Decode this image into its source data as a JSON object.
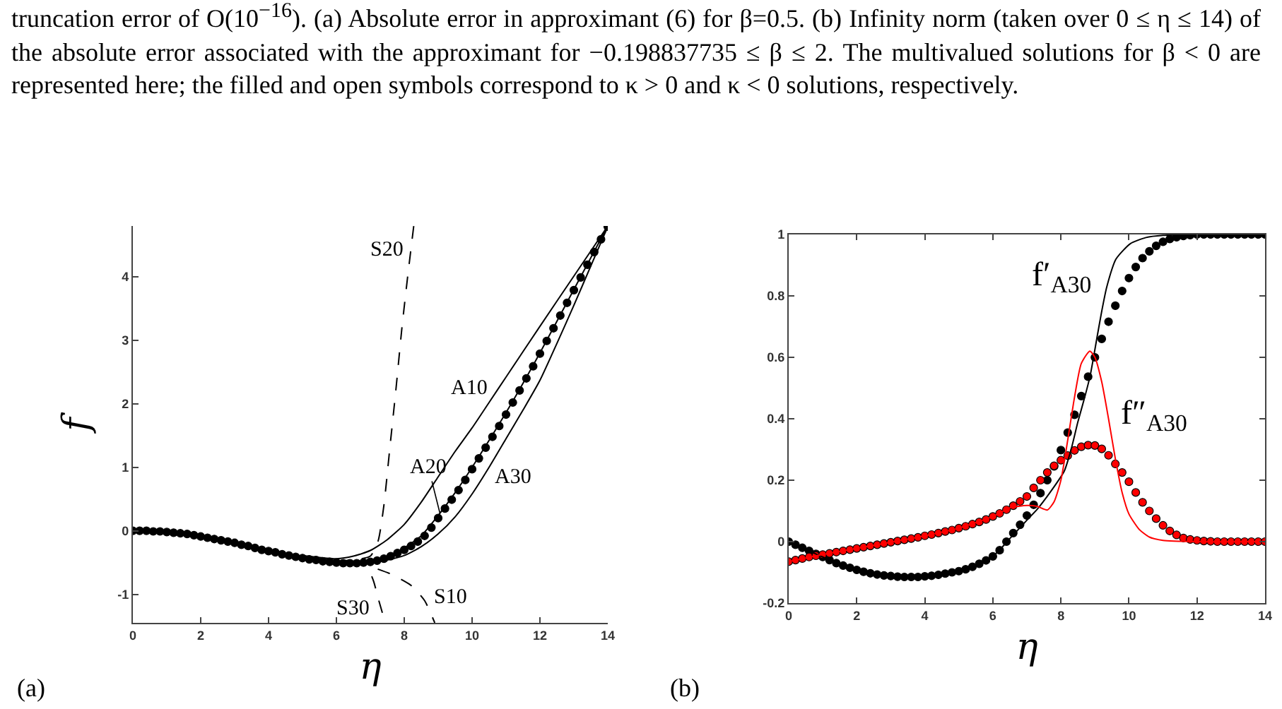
{
  "chart_data": [
    {
      "type": "line",
      "xlabel": "η",
      "ylabel": "f",
      "xlim": [
        0,
        14
      ],
      "ylim": [
        -1.45,
        4.8
      ],
      "xticks": [
        0,
        2,
        4,
        6,
        8,
        10,
        12,
        14
      ],
      "yticks": [
        -1,
        0,
        1,
        2,
        3,
        4
      ],
      "grid": false,
      "legend": false,
      "annotations": [
        "truncation error of O(10$^{−16}$).  (a) Absolute error in approximant (6) for β=0.5.  (b) Infinity norm (taken over 0 ≤ η ≤ 14) of the absolute error associated with the approximant for −0.198837735 ≤ β ≤ 2.  The multivalued solutions for β < 0 are represented here; the filled and open symbols correspond to κ > 0 and κ < 0 solutions, respectively.",
        "(a)",
        {
          "text": "A20",
          "x": 9.05,
          "y": 0.28
        }
      ],
      "x": [
        0,
        0.2,
        0.4,
        0.6,
        0.8,
        1,
        1.2,
        1.4,
        1.6,
        1.8,
        2,
        2.2,
        2.4,
        2.6,
        2.8,
        3,
        3.2,
        3.4,
        3.6,
        3.8,
        4,
        4.2,
        4.4,
        4.6,
        4.8,
        5,
        5.2,
        5.4,
        5.6,
        5.8,
        6,
        6.2,
        6.4,
        6.6,
        6.8,
        7,
        7.2,
        7.4,
        7.6,
        7.8,
        8,
        8.2,
        8.4,
        8.6,
        8.8,
        9,
        9.2,
        9.4,
        9.6,
        9.8,
        10,
        10.2,
        10.4,
        10.6,
        10.8,
        11,
        11.2,
        11.4,
        11.6,
        11.8,
        12,
        12.2,
        12.4,
        12.6,
        12.8,
        13,
        13.2,
        13.4,
        13.6,
        13.8,
        14
      ],
      "series": [
        {
          "type": "scatter",
          "marker": "circle",
          "color": "#000000",
          "values": [
            0,
            0,
            0,
            -0.01,
            -0.01,
            -0.02,
            -0.03,
            -0.04,
            -0.05,
            -0.07,
            -0.09,
            -0.11,
            -0.13,
            -0.15,
            -0.17,
            -0.19,
            -0.22,
            -0.24,
            -0.27,
            -0.3,
            -0.32,
            -0.34,
            -0.37,
            -0.39,
            -0.41,
            -0.43,
            -0.45,
            -0.46,
            -0.48,
            -0.49,
            -0.5,
            -0.51,
            -0.51,
            -0.51,
            -0.5,
            -0.49,
            -0.47,
            -0.44,
            -0.4,
            -0.35,
            -0.3,
            -0.24,
            -0.17,
            -0.08,
            0.05,
            0.2,
            0.35,
            0.49,
            0.64,
            0.8,
            0.97,
            1.14,
            1.31,
            1.48,
            1.65,
            1.83,
            2.02,
            2.21,
            2.4,
            2.59,
            2.79,
            2.99,
            3.19,
            3.39,
            3.59,
            3.79,
            3.99,
            4.19,
            4.39,
            4.59,
            4.79
          ]
        },
        {
          "type": "line",
          "name": "A10",
          "line_style": "solid",
          "color": "#000000",
          "x": [
            5,
            5.5,
            6,
            6.5,
            7,
            7.5,
            8,
            8.5,
            9,
            9.5,
            10,
            10.5,
            11,
            12,
            13,
            14
          ],
          "values": [
            -0.39,
            -0.42,
            -0.44,
            -0.4,
            -0.31,
            -0.14,
            0.1,
            0.45,
            0.85,
            1.25,
            1.62,
            2.02,
            2.42,
            3.22,
            4.01,
            4.8
          ]
        },
        {
          "type": "line",
          "line_style": "solid",
          "color": "#000000",
          "x": [
            6,
            6.5,
            7,
            7.5,
            8,
            8.5,
            9,
            9.5,
            10,
            11,
            12,
            13,
            14
          ],
          "values": [
            -0.5,
            -0.51,
            -0.48,
            -0.4,
            -0.27,
            -0.08,
            0.24,
            0.6,
            1.0,
            1.86,
            2.8,
            3.8,
            4.8
          ]
        },
        {
          "type": "line",
          "name": "A30",
          "line_style": "solid",
          "color": "#000000",
          "x": [
            6.5,
            7,
            7.5,
            8,
            8.5,
            9,
            9.5,
            10,
            10.5,
            11,
            11.5,
            12,
            12.5,
            13,
            13.5,
            14
          ],
          "values": [
            -0.51,
            -0.5,
            -0.46,
            -0.39,
            -0.25,
            -0.05,
            0.22,
            0.58,
            1.0,
            1.45,
            1.9,
            2.37,
            2.95,
            3.55,
            4.17,
            4.79
          ]
        },
        {
          "type": "line",
          "name": "S10",
          "line_style": "dashed",
          "color": "#000000",
          "x": [
            6.5,
            6.8,
            7.1,
            7.6,
            8.2,
            8.6,
            8.9
          ],
          "values": [
            -0.51,
            -0.52,
            -0.58,
            -0.68,
            -0.86,
            -1.1,
            -1.45
          ]
        },
        {
          "type": "line",
          "name": "S20",
          "line_style": "dashed",
          "color": "#000000",
          "x": [
            6,
            6.5,
            7,
            7.23,
            7.4,
            7.58,
            7.75,
            7.93,
            8.1,
            8.28
          ],
          "values": [
            -0.48,
            -0.46,
            -0.4,
            -0.16,
            0.4,
            1.33,
            2.2,
            3.19,
            4.0,
            4.8
          ]
        },
        {
          "type": "line",
          "name": "S30",
          "line_style": "dashed",
          "color": "#000000",
          "x": [
            6.5,
            6.8,
            6.95,
            7.1,
            7.23,
            7.44
          ],
          "values": [
            -0.51,
            -0.52,
            -0.61,
            -0.8,
            -1.06,
            -1.45
          ]
        }
      ]
    },
    {
      "type": "line",
      "xlabel": "η",
      "xlim": [
        0,
        14
      ],
      "ylim": [
        -0.2,
        1
      ],
      "xticks": [
        0,
        2,
        4,
        6,
        8,
        10,
        12,
        14
      ],
      "yticks": [
        -0.2,
        0,
        0.2,
        0.4,
        0.6,
        0.8,
        1
      ],
      "grid": false,
      "legend": false,
      "annotations": [
        "(b)"
      ],
      "x": [
        0,
        0.2,
        0.4,
        0.6,
        0.8,
        1,
        1.2,
        1.4,
        1.6,
        1.8,
        2,
        2.2,
        2.4,
        2.6,
        2.8,
        3,
        3.2,
        3.4,
        3.6,
        3.8,
        4,
        4.2,
        4.4,
        4.6,
        4.8,
        5,
        5.2,
        5.4,
        5.6,
        5.8,
        6,
        6.2,
        6.4,
        6.6,
        6.8,
        7,
        7.2,
        7.4,
        7.6,
        7.8,
        8,
        8.2,
        8.4,
        8.6,
        8.8,
        9,
        9.2,
        9.4,
        9.6,
        9.8,
        10,
        10.2,
        10.4,
        10.6,
        10.8,
        11,
        11.2,
        11.4,
        11.6,
        11.8,
        12,
        12.2,
        12.4,
        12.6,
        12.8,
        13,
        13.2,
        13.4,
        13.6,
        13.8,
        14
      ],
      "series": [
        {
          "type": "scatter",
          "marker": "circle",
          "color": "#000000",
          "values": [
            0,
            -0.01,
            -0.02,
            -0.03,
            -0.04,
            -0.05,
            -0.06,
            -0.07,
            -0.078,
            -0.085,
            -0.092,
            -0.098,
            -0.103,
            -0.107,
            -0.11,
            -0.112,
            -0.114,
            -0.115,
            -0.115,
            -0.115,
            -0.113,
            -0.111,
            -0.108,
            -0.104,
            -0.1,
            -0.096,
            -0.09,
            -0.082,
            -0.072,
            -0.061,
            -0.048,
            -0.028,
            0,
            0.028,
            0.055,
            0.085,
            0.12,
            0.158,
            0.2,
            0.245,
            0.298,
            0.355,
            0.413,
            0.474,
            0.537,
            0.6,
            0.66,
            0.716,
            0.768,
            0.816,
            0.858,
            0.894,
            0.923,
            0.945,
            0.963,
            0.976,
            0.985,
            0.991,
            0.995,
            0.998,
            1,
            1,
            1,
            1,
            1,
            1,
            1,
            1,
            1,
            1,
            1
          ]
        },
        {
          "type": "scatter",
          "marker": "circle",
          "color": "#ff0000",
          "values": [
            -0.065,
            -0.06,
            -0.055,
            -0.05,
            -0.046,
            -0.042,
            -0.038,
            -0.034,
            -0.03,
            -0.026,
            -0.022,
            -0.018,
            -0.014,
            -0.01,
            -0.006,
            -0.002,
            0.002,
            0.006,
            0.01,
            0.014,
            0.019,
            0.023,
            0.028,
            0.033,
            0.038,
            0.044,
            0.05,
            0.057,
            0.064,
            0.072,
            0.082,
            0.092,
            0.104,
            0.117,
            0.131,
            0.147,
            0.175,
            0.2,
            0.225,
            0.247,
            0.265,
            0.28,
            0.297,
            0.309,
            0.314,
            0.313,
            0.302,
            0.281,
            0.253,
            0.225,
            0.195,
            0.16,
            0.128,
            0.1,
            0.075,
            0.053,
            0.035,
            0.022,
            0.012,
            0.007,
            0.004,
            0.002,
            0.001,
            0,
            0,
            0,
            0,
            0,
            0,
            0,
            0
          ]
        },
        {
          "type": "line",
          "name": "f′$_{A30}$",
          "line_style": "solid",
          "color": "#000000",
          "x": [
            0,
            1,
            2,
            3,
            4,
            5,
            6,
            6.5,
            7,
            7.3,
            7.68,
            8.1,
            8.3,
            8.5,
            8.7,
            8.86,
            9.07,
            9.2,
            9.35,
            9.62,
            10.04,
            10.5,
            11,
            12.4,
            14
          ],
          "values": [
            0,
            -0.05,
            -0.092,
            -0.112,
            -0.113,
            -0.096,
            -0.048,
            0.01,
            0.07,
            0.105,
            0.16,
            0.23,
            0.3,
            0.39,
            0.47,
            0.54,
            0.67,
            0.75,
            0.83,
            0.92,
            0.97,
            0.99,
            0.997,
            1,
            1
          ]
        },
        {
          "type": "line",
          "name": "f″$_{A30}$",
          "line_style": "solid",
          "color": "#ff0000",
          "x": [
            0,
            1,
            2,
            3,
            4,
            5,
            6,
            6.5,
            7,
            7.3,
            7.6,
            7.8,
            8,
            8.2,
            8.4,
            8.6,
            8.85,
            9,
            9.2,
            9.4,
            9.6,
            9.8,
            10,
            10.3,
            10.6,
            11,
            12,
            14
          ],
          "values": [
            -0.065,
            -0.042,
            -0.022,
            -0.002,
            0.019,
            0.044,
            0.082,
            0.11,
            0.118,
            0.115,
            0.103,
            0.13,
            0.2,
            0.33,
            0.47,
            0.58,
            0.62,
            0.6,
            0.52,
            0.4,
            0.27,
            0.16,
            0.09,
            0.04,
            0.015,
            0.004,
            0,
            0
          ]
        }
      ]
    }
  ]
}
